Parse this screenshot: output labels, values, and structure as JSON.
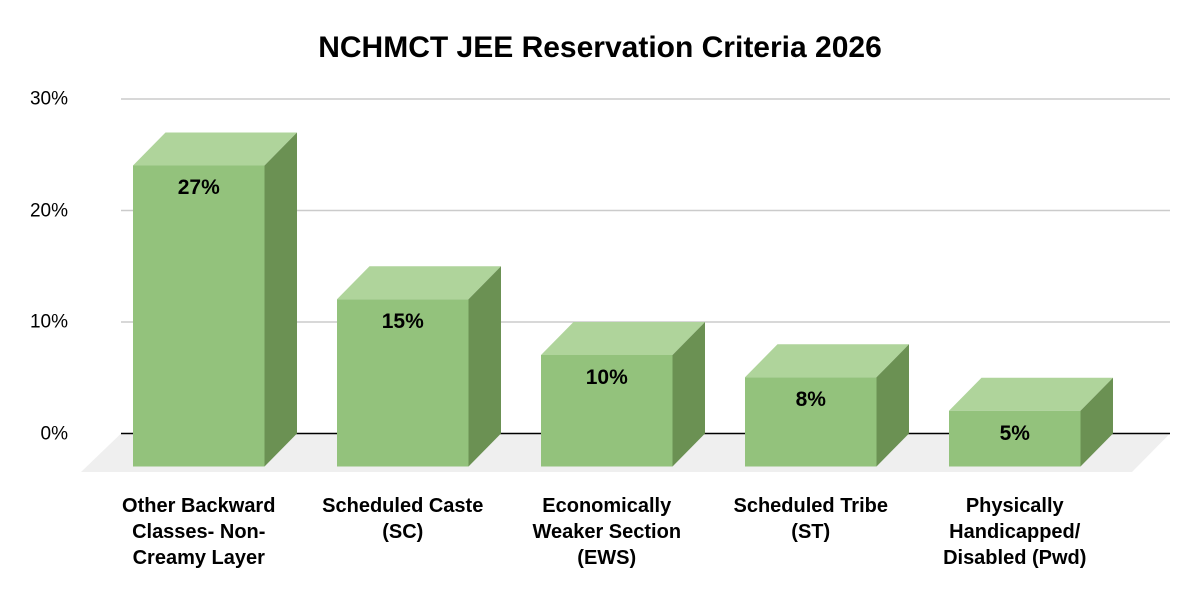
{
  "title": "NCHMCT JEE Reservation Criteria 2026",
  "chart_data": {
    "type": "bar",
    "style": "3d-column",
    "title": "NCHMCT JEE Reservation Criteria 2026",
    "categories": [
      "Other Backward Classes- Non- Creamy Layer",
      "Scheduled Caste (SC)",
      "Economically Weaker Section (EWS)",
      "Scheduled Tribe (ST)",
      "Physically Handicapped/ Disabled (Pwd)"
    ],
    "category_display": [
      "Other Backward\nClasses- Non-\nCreamy Layer",
      "Scheduled Caste\n(SC)",
      "Economically\nWeaker Section\n(EWS)",
      "Scheduled Tribe\n(ST)",
      "Physically\nHandicapped/\nDisabled (Pwd)"
    ],
    "values": [
      27,
      15,
      10,
      8,
      5
    ],
    "value_labels": [
      "27%",
      "15%",
      "10%",
      "8%",
      "5%"
    ],
    "ylabel": "",
    "xlabel": "",
    "ylim": [
      0,
      30
    ],
    "y_ticks": [
      {
        "value": 0,
        "label": "0%"
      },
      {
        "value": 10,
        "label": "10%"
      },
      {
        "value": 20,
        "label": "20%"
      },
      {
        "value": 30,
        "label": "30%"
      }
    ],
    "grid": true,
    "legend_position": "none",
    "colors": {
      "bar_front": "#93c27c",
      "bar_top": "#afd49b",
      "bar_side": "#6b9153",
      "floor": "#efefef",
      "gridline": "#cbcbcb",
      "axis": "#000000",
      "text": "#000000",
      "background": "#ffffff"
    }
  }
}
